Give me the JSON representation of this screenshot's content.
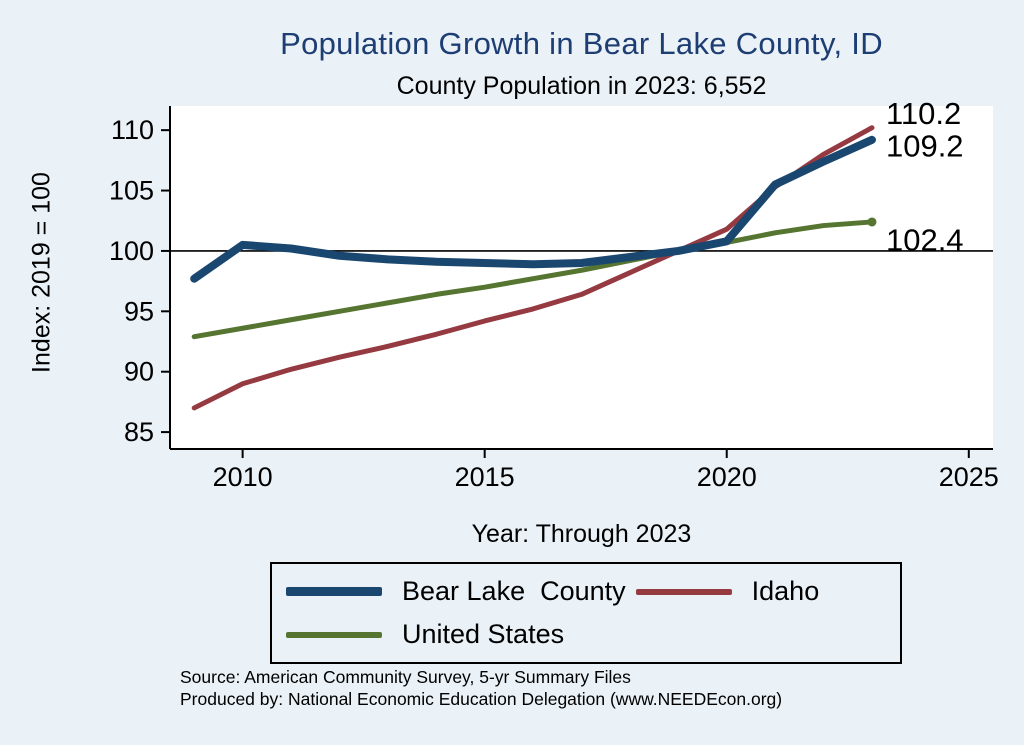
{
  "page": {
    "title": "Population Growth in Bear Lake County, ID",
    "subtitle": "County Population in 2023: 6,552",
    "source_line1": "Source: American Community Survey, 5-yr Summary Files",
    "source_line2": "Produced by: National Economic Education Delegation (www.NEEDEcon.org)"
  },
  "chart_data": {
    "type": "line",
    "title": "Population Growth in Bear Lake County, ID",
    "subtitle": "County Population in 2023: 6,552",
    "xlabel": "Year: Through 2023",
    "ylabel": "Index: 2019 = 100",
    "x": [
      2009,
      2010,
      2011,
      2012,
      2013,
      2014,
      2015,
      2016,
      2017,
      2018,
      2019,
      2020,
      2021,
      2022,
      2023
    ],
    "series": [
      {
        "name": "Bear Lake  County",
        "color": "#1a476f",
        "width": 8,
        "end_marker": false,
        "values": [
          97.7,
          100.5,
          100.2,
          99.6,
          99.3,
          99.1,
          99.0,
          98.9,
          99.0,
          99.5,
          100.0,
          100.8,
          105.5,
          107.4,
          109.2
        ]
      },
      {
        "name": "Idaho",
        "color": "#963a42",
        "width": 5,
        "end_marker": false,
        "values": [
          87.0,
          89.0,
          90.2,
          91.2,
          92.1,
          93.1,
          94.2,
          95.2,
          96.4,
          98.2,
          100.0,
          101.8,
          105.3,
          108.0,
          110.2
        ]
      },
      {
        "name": "United States",
        "color": "#557530",
        "width": 5,
        "end_marker": true,
        "values": [
          92.9,
          93.6,
          94.3,
          95.0,
          95.7,
          96.4,
          97.0,
          97.7,
          98.4,
          99.2,
          100.0,
          100.7,
          101.5,
          102.1,
          102.4
        ]
      }
    ],
    "y_ticks": [
      85,
      90,
      95,
      100,
      105,
      110
    ],
    "x_ticks": [
      2010,
      2015,
      2020,
      2025
    ],
    "xlim": [
      2008.5,
      2025.5
    ],
    "ylim": [
      83.6,
      112.0
    ],
    "ref_line": 100,
    "annotations": [
      {
        "label": "110.2",
        "value": 110.2
      },
      {
        "label": "109.2",
        "value": 109.2
      },
      {
        "label": "102.4",
        "value": 102.4
      }
    ],
    "legend_position": "bottom",
    "grid": "off"
  }
}
